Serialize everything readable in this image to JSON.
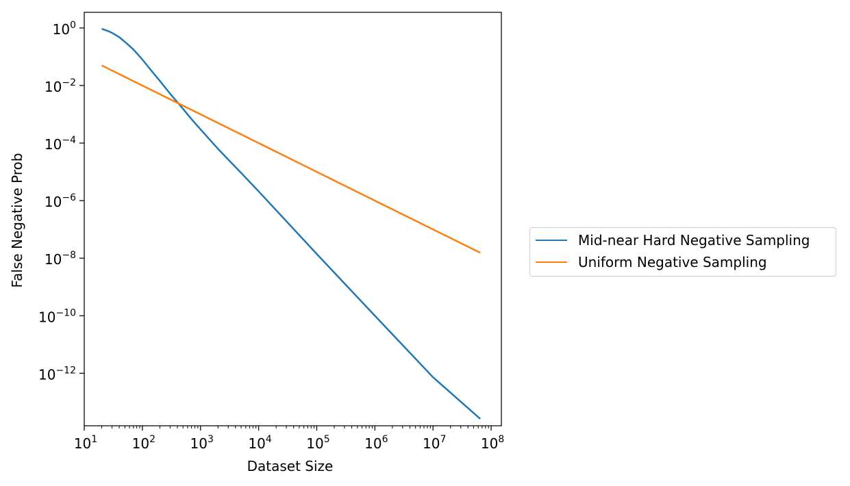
{
  "chart_data": {
    "type": "line",
    "title": "",
    "xlabel": "Dataset Size",
    "ylabel": "False Negative Prob",
    "x_scale": "log",
    "y_scale": "log",
    "xlim": [
      10,
      150000000
    ],
    "ylim": [
      1.5e-14,
      3.5
    ],
    "x_ticks": [
      10,
      100,
      1000,
      10000,
      100000,
      1000000,
      10000000,
      100000000
    ],
    "x_tick_labels": [
      {
        "base": "10",
        "exp": "1"
      },
      {
        "base": "10",
        "exp": "2"
      },
      {
        "base": "10",
        "exp": "3"
      },
      {
        "base": "10",
        "exp": "4"
      },
      {
        "base": "10",
        "exp": "5"
      },
      {
        "base": "10",
        "exp": "6"
      },
      {
        "base": "10",
        "exp": "7"
      },
      {
        "base": "10",
        "exp": "8"
      }
    ],
    "y_ticks": [
      1,
      0.01,
      0.0001,
      1e-06,
      1e-08,
      1e-10,
      1e-12
    ],
    "y_tick_labels": [
      {
        "base": "10",
        "exp": "0"
      },
      {
        "base": "10",
        "exp": "−2"
      },
      {
        "base": "10",
        "exp": "−4"
      },
      {
        "base": "10",
        "exp": "−6"
      },
      {
        "base": "10",
        "exp": "−8"
      },
      {
        "base": "10",
        "exp": "−10"
      },
      {
        "base": "10",
        "exp": "−12"
      }
    ],
    "grid": false,
    "legend_position": "outside-right",
    "series": [
      {
        "name": "Mid-near Hard Negative Sampling",
        "color": "#1f77b4",
        "x": [
          20,
          25,
          30,
          40,
          50,
          70,
          100,
          150,
          200,
          300,
          500,
          700,
          1000,
          2000,
          5000,
          10000,
          100000,
          1000000,
          10000000,
          65000000
        ],
        "y": [
          0.93,
          0.8,
          0.68,
          0.48,
          0.33,
          0.18,
          0.08,
          0.029,
          0.0145,
          0.0052,
          0.00155,
          0.00068,
          0.0003,
          6.3e-05,
          9.2e-06,
          2.1e-06,
          1.4e-08,
          1e-10,
          7.3e-13,
          2.6e-14
        ]
      },
      {
        "name": "Uniform Negative Sampling",
        "color": "#ff7f0e",
        "x": [
          20,
          100,
          1000,
          10000,
          100000,
          1000000,
          10000000,
          65000000
        ],
        "y": [
          0.05,
          0.01,
          0.001,
          0.0001,
          1e-05,
          1e-06,
          1e-07,
          1.54e-08
        ]
      }
    ]
  }
}
